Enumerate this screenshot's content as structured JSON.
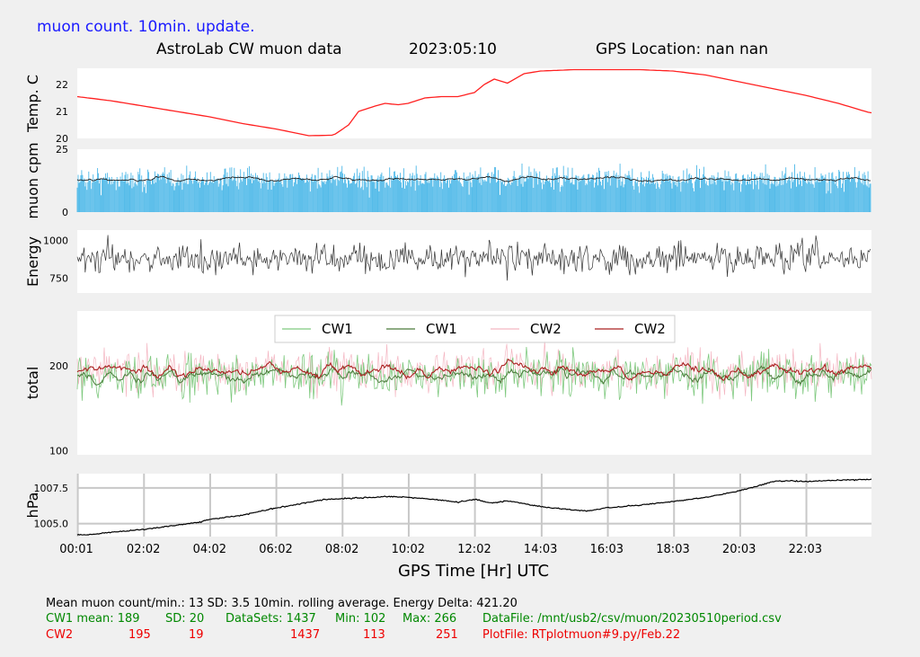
{
  "header": {
    "top_title": "muon count.  10min. update.",
    "subtitle_left": "AstroLab CW muon data",
    "date": "2023:05:10",
    "gps_location": "GPS Location: nan   nan"
  },
  "x_axis": {
    "label": "GPS Time  [Hr] UTC",
    "ticks": [
      "00:01",
      "02:02",
      "04:02",
      "06:02",
      "08:02",
      "10:02",
      "12:02",
      "14:03",
      "16:03",
      "18:03",
      "20:03",
      "22:03"
    ]
  },
  "chart_data": [
    {
      "type": "line",
      "name": "temperature",
      "ylabel": "Temp. C",
      "yticks": [
        "22",
        "21",
        "20"
      ],
      "ylim": [
        20,
        22.6
      ],
      "color": "#ff2020",
      "x_hours": [
        0,
        1,
        2,
        3,
        4,
        5,
        6,
        7,
        7.75,
        8.2,
        8.5,
        9,
        9.3,
        9.7,
        10,
        10.5,
        11,
        11.5,
        12,
        12.3,
        12.6,
        13,
        13.5,
        14,
        15,
        16,
        17,
        18,
        19,
        20,
        21,
        22,
        23,
        23.95
      ],
      "values": [
        21.55,
        21.4,
        21.2,
        21,
        20.8,
        20.55,
        20.35,
        20.1,
        20.12,
        20.5,
        21,
        21.2,
        21.3,
        21.25,
        21.3,
        21.5,
        21.55,
        21.55,
        21.7,
        22,
        22.2,
        22.05,
        22.4,
        22.5,
        22.55,
        22.55,
        22.55,
        22.5,
        22.35,
        22.1,
        21.85,
        21.6,
        21.3,
        20.95
      ]
    },
    {
      "type": "bar",
      "name": "muon-cpm",
      "ylabel": "muon cpm",
      "yticks": [
        "25",
        "0"
      ],
      "ylim": [
        0,
        25
      ],
      "mean": 13,
      "sd": 3.5,
      "bar_color": "#4db8e8",
      "avg_color": "#222222"
    },
    {
      "type": "line",
      "name": "energy",
      "ylabel": "Energy",
      "yticks": [
        "1000",
        "750"
      ],
      "ylim": [
        650,
        1070
      ],
      "center": 880,
      "color": "#333333"
    },
    {
      "type": "line",
      "name": "total",
      "ylabel": "total",
      "yticks": [
        "200",
        "100"
      ],
      "ylim": [
        95,
        265
      ],
      "legend": [
        "CW1",
        "CW1",
        "CW2",
        "CW2"
      ],
      "legend_colors": [
        "#7fc97f",
        "#4a7a3a",
        "#f4b6c2",
        "#aa2020"
      ],
      "cw1": {
        "mean": 189,
        "sd": 20,
        "min": 102,
        "max": 266
      },
      "cw2": {
        "mean": 195,
        "sd": 19,
        "min": 113,
        "max": 251
      }
    },
    {
      "type": "line",
      "name": "pressure",
      "ylabel": "hPa",
      "yticks": [
        "1007.5",
        "1005.0"
      ],
      "ylim": [
        1004.1,
        1008.5
      ],
      "color": "#000000",
      "x_hours": [
        0,
        0.5,
        1,
        2,
        3,
        3.7,
        4,
        5,
        6,
        7,
        7.5,
        8,
        9,
        9.5,
        10,
        11,
        11.5,
        12,
        12.5,
        13,
        13.5,
        14,
        15,
        15.5,
        16,
        17,
        18,
        19,
        20,
        20.5,
        21,
        21.5,
        22,
        23,
        24
      ],
      "values": [
        1004.2,
        1004.25,
        1004.4,
        1004.6,
        1004.9,
        1005.1,
        1005.3,
        1005.6,
        1006.1,
        1006.5,
        1006.7,
        1006.75,
        1006.85,
        1006.9,
        1006.85,
        1006.65,
        1006.5,
        1006.7,
        1006.45,
        1006.6,
        1006.4,
        1006.2,
        1005.95,
        1005.9,
        1006.1,
        1006.3,
        1006.55,
        1006.85,
        1007.3,
        1007.6,
        1007.95,
        1008.0,
        1007.95,
        1008.05,
        1008.1
      ]
    }
  ],
  "stats": {
    "line1": "Mean muon count/min.: 13  SD: 3.5   10min. rolling average.    Energy Delta:  421.20",
    "cw1_mean": "CW1 mean: 189",
    "cw1_sd": "SD: 20",
    "cw1_datasets": "DataSets: 1437",
    "cw1_min": "Min: 102",
    "cw1_max": "Max: 266",
    "datafile": "DataFile: /mnt/usb2/csv/muon/20230510period.csv",
    "cw2_label": "CW2",
    "cw2_mean": "195",
    "cw2_sd": "19",
    "cw2_datasets": "1437",
    "cw2_min": "113",
    "cw2_max": "251",
    "plotfile": "PlotFile: RTplotmuon#9.py/Feb.22",
    "green": "#008800",
    "red": "#ee0000"
  }
}
